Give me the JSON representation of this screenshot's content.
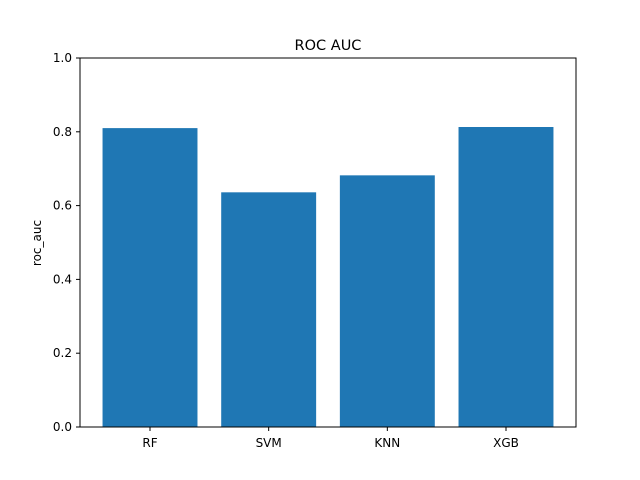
{
  "chart_data": {
    "type": "bar",
    "title": "ROC AUC",
    "xlabel": "",
    "ylabel": "roc_auc",
    "categories": [
      "RF",
      "SVM",
      "KNN",
      "XGB"
    ],
    "values": [
      0.81,
      0.636,
      0.682,
      0.813
    ],
    "ylim": [
      0,
      1.0
    ],
    "yticks": [
      "0.0",
      "0.2",
      "0.4",
      "0.6",
      "0.8",
      "1.0"
    ],
    "bar_color": "#1f77b4",
    "grid": false,
    "legend": "none"
  }
}
